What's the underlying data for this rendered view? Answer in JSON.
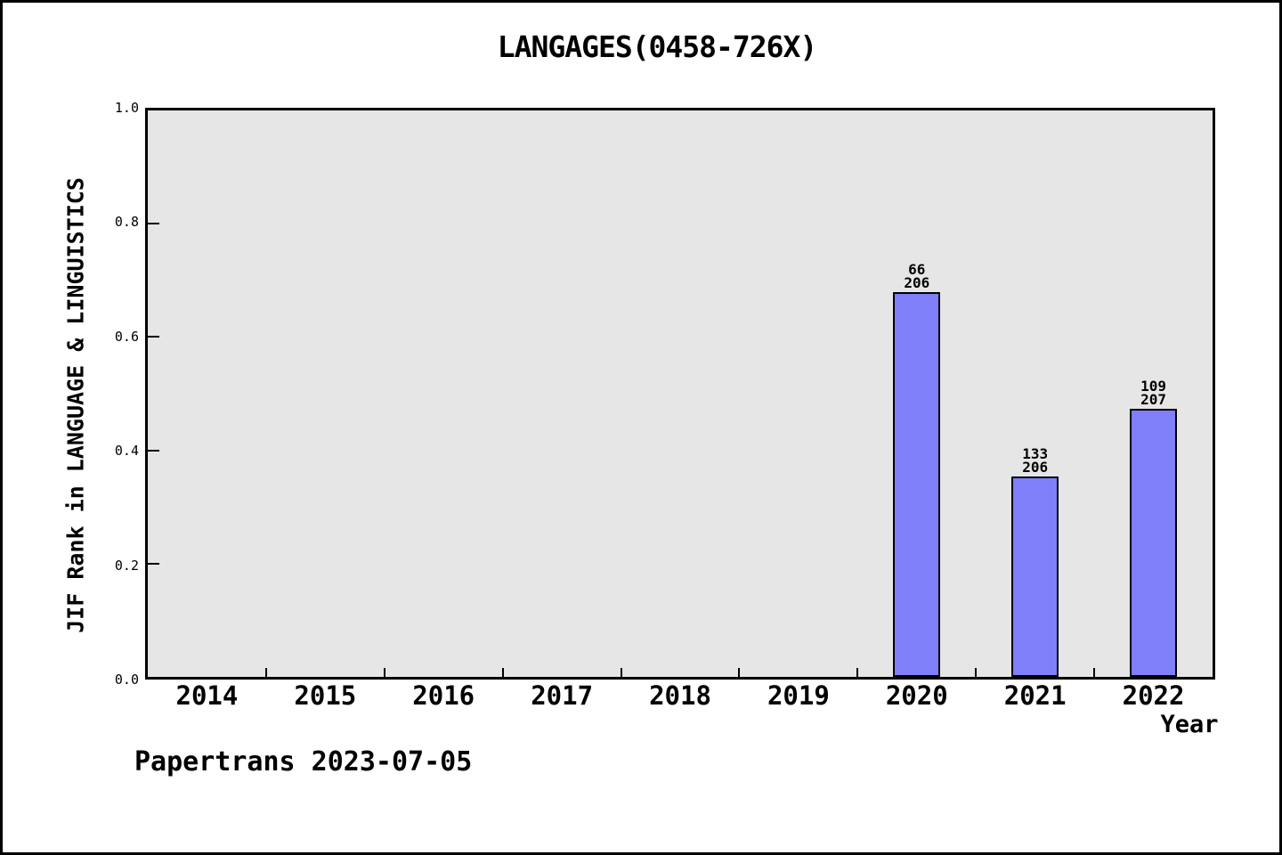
{
  "title": "LANGAGES(0458-726X)",
  "footer": "Papertrans 2023-07-05",
  "chart_data": {
    "type": "bar",
    "title": "LANGAGES(0458-726X)",
    "xlabel": "Year",
    "ylabel": "JIF Rank in LANGUAGE & LINGUISTICS",
    "categories": [
      "2014",
      "2015",
      "2016",
      "2017",
      "2018",
      "2019",
      "2020",
      "2021",
      "2022"
    ],
    "yticks": [
      "0.0",
      "0.2",
      "0.4",
      "0.6",
      "0.8",
      "1.0"
    ],
    "ylim": [
      0,
      1
    ],
    "grid": "off",
    "legend": "none",
    "bars": [
      {
        "category": "2020",
        "rank": "66",
        "total": "206",
        "value": 0.68
      },
      {
        "category": "2021",
        "rank": "133",
        "total": "206",
        "value": 0.354
      },
      {
        "category": "2022",
        "rank": "109",
        "total": "207",
        "value": 0.473
      }
    ],
    "colors": {
      "bar_fill": "#7f7ffa",
      "bar_border": "#000000",
      "plot_background": "#e6e6e6",
      "axis": "#000000",
      "text": "#000000"
    }
  }
}
